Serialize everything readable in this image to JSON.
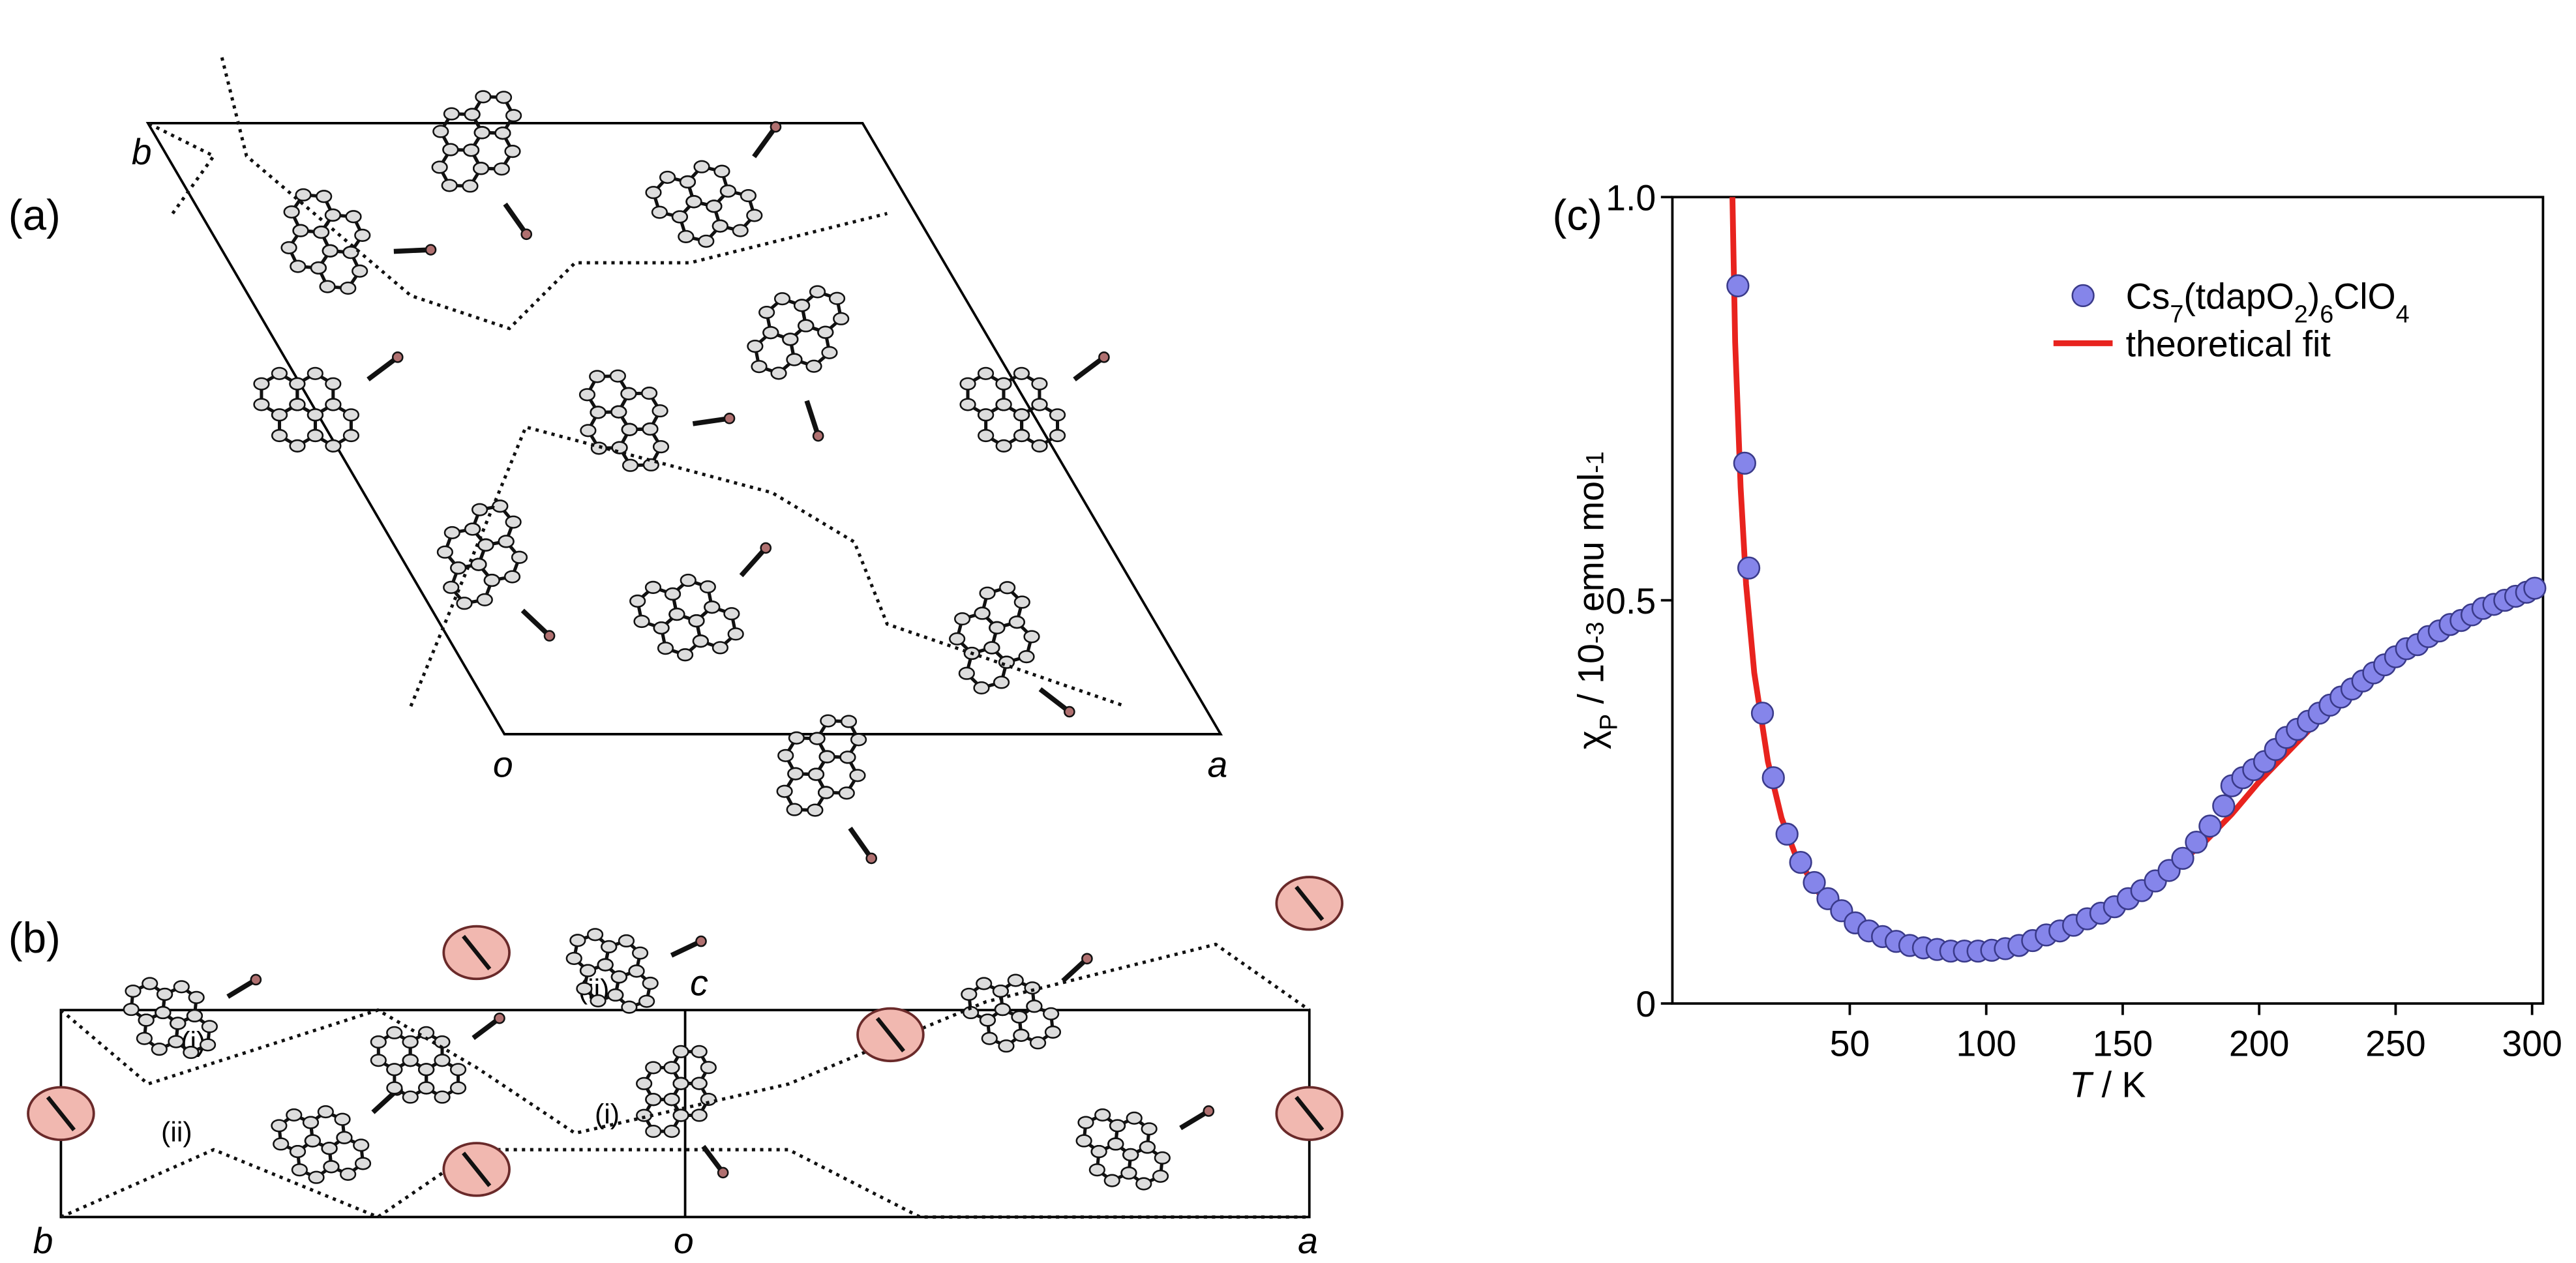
{
  "panel_a": {
    "label": "(a)",
    "axis_labels": [
      "b",
      "o",
      "a"
    ]
  },
  "panel_b": {
    "label": "(b)",
    "axis_labels": [
      "b",
      "o",
      "a",
      "c"
    ],
    "annotations": [
      "(i)",
      "(ii)",
      "(ii)",
      "(i)"
    ]
  },
  "chart_data": {
    "type": "scatter",
    "panel_label": "(c)",
    "xlabel": [
      {
        "text": "T",
        "style": "italic"
      },
      {
        "text": " / K"
      }
    ],
    "ylabel": [
      {
        "text": "χ"
      },
      {
        "text": "P",
        "shift": "sub"
      },
      {
        "text": " / 10"
      },
      {
        "text": "-3",
        "shift": "sup"
      },
      {
        "text": " emu mol"
      },
      {
        "text": "-1",
        "shift": "sup"
      }
    ],
    "xlim": [
      -15,
      304
    ],
    "ylim": [
      0,
      1.0
    ],
    "xticks": [
      50,
      100,
      150,
      200,
      250,
      300
    ],
    "yticks": [
      0,
      {
        "value": 0.5,
        "label": "0.5"
      },
      {
        "value": 1.0,
        "label": "1.0"
      }
    ],
    "legend": "upper right",
    "series": [
      {
        "name": [
          "Cs",
          "7",
          "(tdapO",
          "2",
          ")",
          "6",
          "ClO",
          "4"
        ],
        "type": "scatter",
        "color": "#8585ea",
        "x": [
          9,
          11.5,
          13,
          18,
          22,
          27,
          32,
          37,
          42,
          47,
          52,
          57,
          62,
          67,
          72,
          77,
          82,
          87,
          92,
          97,
          102,
          107,
          112,
          117,
          122,
          127,
          132,
          137,
          142,
          147,
          152,
          157,
          162,
          167,
          172,
          177,
          182,
          187,
          190,
          194,
          198,
          202,
          206,
          210,
          214,
          218,
          222,
          226,
          230,
          234,
          238,
          242,
          246,
          250,
          254,
          258,
          262,
          266,
          270,
          274,
          278,
          282,
          286,
          290,
          294,
          298,
          301
        ],
        "values": [
          0.89,
          0.67,
          0.54,
          0.36,
          0.28,
          0.21,
          0.175,
          0.15,
          0.13,
          0.115,
          0.1,
          0.09,
          0.083,
          0.077,
          0.072,
          0.069,
          0.067,
          0.065,
          0.065,
          0.065,
          0.066,
          0.068,
          0.072,
          0.078,
          0.085,
          0.09,
          0.097,
          0.105,
          0.112,
          0.12,
          0.13,
          0.14,
          0.152,
          0.165,
          0.18,
          0.2,
          0.22,
          0.245,
          0.27,
          0.28,
          0.29,
          0.3,
          0.315,
          0.33,
          0.34,
          0.35,
          0.36,
          0.37,
          0.38,
          0.39,
          0.4,
          0.41,
          0.42,
          0.43,
          0.44,
          0.445,
          0.455,
          0.462,
          0.47,
          0.475,
          0.482,
          0.49,
          0.495,
          0.5,
          0.505,
          0.51,
          0.515
        ]
      },
      {
        "name": "theoretical fit",
        "type": "line",
        "color": "#e8231e",
        "x": [
          7,
          8,
          10,
          12,
          15,
          20,
          25,
          30,
          40,
          50,
          60,
          70,
          80,
          90,
          100,
          110,
          120,
          130,
          140,
          150,
          160,
          170,
          180,
          190,
          200,
          210,
          220,
          230,
          240,
          250,
          260,
          270,
          280,
          290,
          300
        ],
        "values": [
          1.0,
          0.82,
          0.64,
          0.52,
          0.41,
          0.3,
          0.23,
          0.185,
          0.13,
          0.1,
          0.082,
          0.071,
          0.065,
          0.063,
          0.064,
          0.068,
          0.077,
          0.09,
          0.105,
          0.125,
          0.148,
          0.172,
          0.2,
          0.235,
          0.275,
          0.31,
          0.345,
          0.375,
          0.405,
          0.43,
          0.455,
          0.475,
          0.492,
          0.508,
          0.52
        ]
      }
    ]
  }
}
